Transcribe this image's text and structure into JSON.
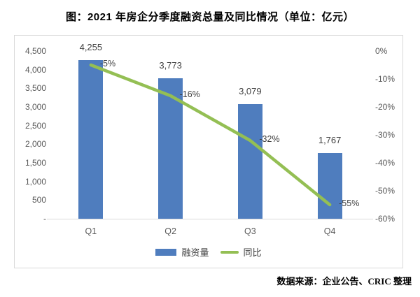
{
  "title": "图：2021 年房企分季度融资总量及同比情况（单位：亿元）",
  "source": "数据来源：企业公告、CRIC 整理",
  "colors": {
    "bar": "#4f7dbe",
    "line": "#94bf54",
    "axis_text": "#595959",
    "value_text": "#3f3f3f",
    "border": "#d9d9d9",
    "background": "#ffffff",
    "title_text": "#000000"
  },
  "chart_data": {
    "type": "bar-line-combo",
    "title": "图：2021 年房企分季度融资总量及同比情况（单位：亿元）",
    "categories": [
      "Q1",
      "Q2",
      "Q3",
      "Q4"
    ],
    "series": [
      {
        "name": "融资量",
        "type": "bar",
        "axis": "left",
        "values": [
          4255,
          3773,
          3079,
          1767
        ],
        "labels": [
          "4,255",
          "3,773",
          "3,079",
          "1,767"
        ],
        "color": "#4f7dbe"
      },
      {
        "name": "同比",
        "type": "line",
        "axis": "right",
        "values": [
          -5,
          -16,
          -32,
          -55
        ],
        "labels": [
          "-5%",
          "-16%",
          "-32%",
          "-55%"
        ],
        "color": "#94bf54"
      }
    ],
    "left_axis": {
      "min": 0,
      "max": 4500,
      "step": 500,
      "tick_labels": [
        "4,500",
        "4,000",
        "3,500",
        "3,000",
        "2,500",
        "2,000",
        "1,500",
        "1,000",
        "500",
        "-"
      ]
    },
    "right_axis": {
      "min": -60,
      "max": 0,
      "step": -10,
      "tick_labels": [
        "0%",
        "-10%",
        "-20%",
        "-30%",
        "-40%",
        "-50%",
        "-60%"
      ]
    },
    "grid": false,
    "legend_position": "bottom"
  }
}
